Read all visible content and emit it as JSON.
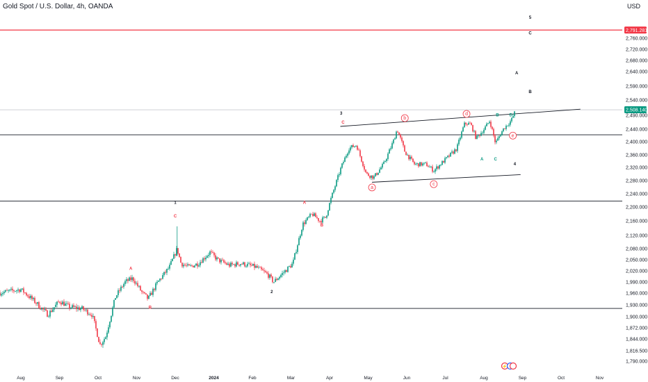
{
  "header": {
    "title": "Gold Spot / U.S. Dollar, 4h, OANDA",
    "currency": "USD"
  },
  "chart_data": {
    "type": "candlestick",
    "ylim": [
      1780,
      2800
    ],
    "y_ticks": [
      {
        "v": 1790,
        "label": "1,790.000"
      },
      {
        "v": 1816.5,
        "label": "1,816.500"
      },
      {
        "v": 1844,
        "label": "1,844.000"
      },
      {
        "v": 1872,
        "label": "1,872.000"
      },
      {
        "v": 1900,
        "label": "1,900.000"
      },
      {
        "v": 1930,
        "label": "1,930.000"
      },
      {
        "v": 1960,
        "label": "1,960.000"
      },
      {
        "v": 1990,
        "label": "1,990.000"
      },
      {
        "v": 2020,
        "label": "2,020.000"
      },
      {
        "v": 2050,
        "label": "2,050.000"
      },
      {
        "v": 2080,
        "label": "2,080.000"
      },
      {
        "v": 2120,
        "label": "2,120.000"
      },
      {
        "v": 2160,
        "label": "2,160.000"
      },
      {
        "v": 2200,
        "label": "2,200.000"
      },
      {
        "v": 2240,
        "label": "2,240.000"
      },
      {
        "v": 2280,
        "label": "2,280.000"
      },
      {
        "v": 2320,
        "label": "2,320.000"
      },
      {
        "v": 2360,
        "label": "2,360.000"
      },
      {
        "v": 2400,
        "label": "2,400.000"
      },
      {
        "v": 2440,
        "label": "2,440.000"
      },
      {
        "v": 2490,
        "label": "2,490.000"
      },
      {
        "v": 2540,
        "label": "2,540.000"
      },
      {
        "v": 2590,
        "label": "2,590.000"
      },
      {
        "v": 2640,
        "label": "2,640.000"
      },
      {
        "v": 2680,
        "label": "2,680.000"
      },
      {
        "v": 2720,
        "label": "2,720.000"
      },
      {
        "v": 2760,
        "label": "2,760.000"
      }
    ],
    "x_ticks": [
      {
        "t": 0,
        "label": "Aug"
      },
      {
        "t": 1,
        "label": "Sep"
      },
      {
        "t": 2,
        "label": "Oct"
      },
      {
        "t": 3,
        "label": "Nov"
      },
      {
        "t": 4,
        "label": "Dec"
      },
      {
        "t": 5,
        "label": "2024",
        "bold": true
      },
      {
        "t": 6,
        "label": "Feb"
      },
      {
        "t": 7,
        "label": "Mar"
      },
      {
        "t": 8,
        "label": "Apr"
      },
      {
        "t": 9,
        "label": "May"
      },
      {
        "t": 10,
        "label": "Jun"
      },
      {
        "t": 11,
        "label": "Jul"
      },
      {
        "t": 12,
        "label": "Aug"
      },
      {
        "t": 13,
        "label": "Sep"
      },
      {
        "t": 14,
        "label": "Oct"
      },
      {
        "t": 15,
        "label": "Nov"
      }
    ],
    "price_path": [
      [
        -0.6,
        1960
      ],
      [
        0,
        1970
      ],
      [
        0.4,
        1935
      ],
      [
        0.7,
        1905
      ],
      [
        1.0,
        1940
      ],
      [
        1.25,
        1925
      ],
      [
        1.6,
        1920
      ],
      [
        1.85,
        1905
      ],
      [
        2.05,
        1830
      ],
      [
        2.2,
        1850
      ],
      [
        2.45,
        1950
      ],
      [
        2.7,
        1990
      ],
      [
        2.9,
        2000
      ],
      [
        3.15,
        1960
      ],
      [
        3.3,
        1945
      ],
      [
        3.55,
        1990
      ],
      [
        3.85,
        2030
      ],
      [
        4.05,
        2080
      ],
      [
        4.15,
        2040
      ],
      [
        4.35,
        2030
      ],
      [
        4.6,
        2040
      ],
      [
        4.9,
        2070
      ],
      [
        5.1,
        2050
      ],
      [
        5.4,
        2035
      ],
      [
        5.7,
        2040
      ],
      [
        6.1,
        2030
      ],
      [
        6.4,
        2010
      ],
      [
        6.55,
        1990
      ],
      [
        6.85,
        2020
      ],
      [
        7.05,
        2040
      ],
      [
        7.3,
        2150
      ],
      [
        7.55,
        2180
      ],
      [
        7.75,
        2160
      ],
      [
        7.9,
        2170
      ],
      [
        8.05,
        2230
      ],
      [
        8.3,
        2320
      ],
      [
        8.5,
        2380
      ],
      [
        8.7,
        2390
      ],
      [
        8.95,
        2300
      ],
      [
        9.15,
        2290
      ],
      [
        9.4,
        2330
      ],
      [
        9.65,
        2400
      ],
      [
        9.75,
        2440
      ],
      [
        9.95,
        2370
      ],
      [
        10.2,
        2330
      ],
      [
        10.5,
        2330
      ],
      [
        10.7,
        2310
      ],
      [
        11.0,
        2345
      ],
      [
        11.3,
        2380
      ],
      [
        11.5,
        2460
      ],
      [
        11.65,
        2460
      ],
      [
        11.8,
        2410
      ],
      [
        12.0,
        2440
      ],
      [
        12.15,
        2470
      ],
      [
        12.3,
        2395
      ],
      [
        12.5,
        2440
      ],
      [
        12.7,
        2470
      ],
      [
        12.8,
        2500
      ]
    ],
    "trendlines": [
      {
        "color": "#131722",
        "width": 0.9,
        "from": [
          8.28,
          2450
        ],
        "to": [
          14.5,
          2510
        ]
      },
      {
        "color": "#131722",
        "width": 0.9,
        "from": [
          9.1,
          2275
        ],
        "to": [
          12.95,
          2298
        ]
      }
    ],
    "hlines": [
      {
        "v": 2791.28,
        "color": "#f23645",
        "width": 1.3
      },
      {
        "v": 2508.14,
        "color": "#b2b5be",
        "width": 0.6
      },
      {
        "v": 2422,
        "color": "#131722",
        "width": 0.9
      },
      {
        "v": 2218,
        "color": "#131722",
        "width": 0.9
      },
      {
        "v": 1921,
        "color": "#131722",
        "width": 0.9
      }
    ],
    "wave_labels": [
      {
        "t": 13.2,
        "v": 2835,
        "text": "5",
        "color": "#131722"
      },
      {
        "t": 13.2,
        "v": 2775,
        "text": "C",
        "color": "#131722"
      },
      {
        "t": 12.85,
        "v": 2630,
        "text": "A",
        "color": "#131722"
      },
      {
        "t": 13.2,
        "v": 2565,
        "text": "B",
        "color": "#131722"
      },
      {
        "t": 8.3,
        "v": 2492,
        "text": "3",
        "color": "#131722"
      },
      {
        "t": 8.35,
        "v": 2460,
        "text": "C",
        "color": "#f23645"
      },
      {
        "t": 12.35,
        "v": 2486,
        "text": "B",
        "color": "#089981"
      },
      {
        "t": 12.7,
        "v": 2486,
        "text": "D",
        "color": "#089981"
      },
      {
        "t": 11.95,
        "v": 2342,
        "text": "A",
        "color": "#089981"
      },
      {
        "t": 12.3,
        "v": 2342,
        "text": "C",
        "color": "#089981"
      },
      {
        "t": 12.8,
        "v": 2327,
        "text": "4",
        "color": "#131722"
      },
      {
        "t": 4.0,
        "v": 2210,
        "text": "1",
        "color": "#131722"
      },
      {
        "t": 4.0,
        "v": 2170,
        "text": "C",
        "color": "#f23645"
      },
      {
        "t": 7.35,
        "v": 2210,
        "text": "A",
        "color": "#f23645"
      },
      {
        "t": 7.8,
        "v": 2145,
        "text": "B",
        "color": "#f23645"
      },
      {
        "t": 2.85,
        "v": 2023,
        "text": "A",
        "color": "#f23645"
      },
      {
        "t": 3.35,
        "v": 1920,
        "text": "B",
        "color": "#f23645"
      },
      {
        "t": 6.5,
        "v": 1960,
        "text": "2",
        "color": "#131722"
      }
    ],
    "circle_labels": [
      {
        "t": 9.95,
        "v": 2475,
        "text": "b",
        "color": "#f23645"
      },
      {
        "t": 11.55,
        "v": 2490,
        "text": "d",
        "color": "#f23645"
      },
      {
        "t": 12.75,
        "v": 2415,
        "text": "e",
        "color": "#f23645"
      },
      {
        "t": 9.1,
        "v": 2255,
        "text": "a",
        "color": "#f23645"
      },
      {
        "t": 10.7,
        "v": 2265,
        "text": "c",
        "color": "#f23645"
      }
    ],
    "price_tags": [
      {
        "v": 2791.28,
        "label": "2,791.281",
        "bg": "#f23645",
        "fg": "#ffffff"
      },
      {
        "v": 2508.14,
        "label": "2,508.140",
        "bg": "#089981",
        "fg": "#ffffff"
      }
    ],
    "colors": {
      "up": "#089981",
      "down": "#f23645",
      "axis_text": "#131722"
    }
  }
}
